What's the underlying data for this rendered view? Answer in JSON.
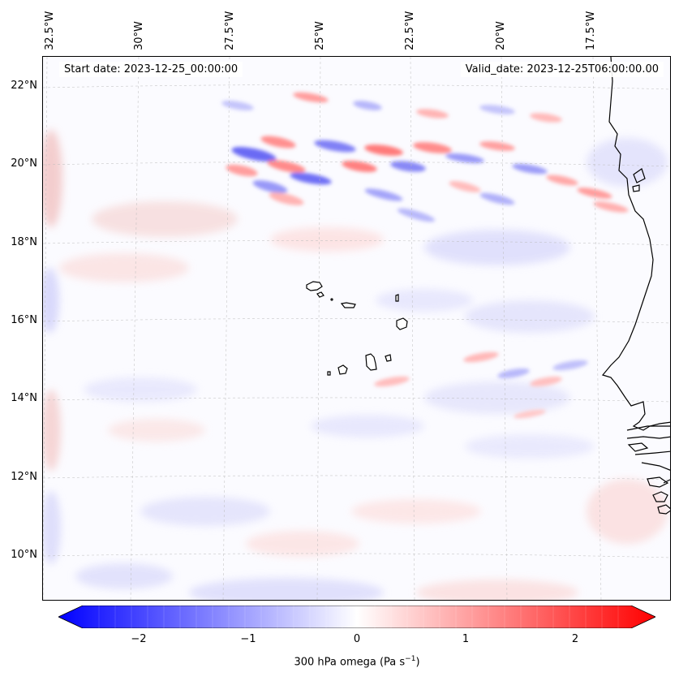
{
  "map": {
    "start_label": "Start date: ",
    "start_value": "2023-12-25_00:00:00",
    "valid_label": "Valid_date: ",
    "valid_value": "2023-12-25T06:00:00.00",
    "longitude_labels": [
      "32.5°W",
      "30°W",
      "27.5°W",
      "25°W",
      "22.5°W",
      "20°W",
      "17.5°W"
    ],
    "latitude_labels": [
      "22°N",
      "20°N",
      "18°N",
      "16°N",
      "14°N",
      "12°N",
      "10°N"
    ],
    "extent_lon": [
      -32.6,
      -15.2
    ],
    "extent_lat": [
      8.9,
      22.8
    ],
    "gridlines": true,
    "field": "300 hPa omega",
    "regions": [
      "Cape Verde islands",
      "West African coast (Mauritania, Senegal, Guinea-Bissau)"
    ]
  },
  "colorbar": {
    "colormap": "bwr",
    "range": [
      -2.6,
      2.6
    ],
    "extend": "both",
    "low_color": "#0000ff",
    "mid_color": "#ffffff",
    "high_color": "#ff0000",
    "ticks": [
      "−2",
      "−1",
      "0",
      "1",
      "2"
    ],
    "tick_values": [
      -2,
      -1,
      0,
      1,
      2
    ],
    "label_main": "300 hPa omega (Pa s",
    "label_exp": "−1",
    "label_close": ")"
  },
  "colors": {
    "coastline": "#000000",
    "gridline": "#b0b0b0"
  }
}
